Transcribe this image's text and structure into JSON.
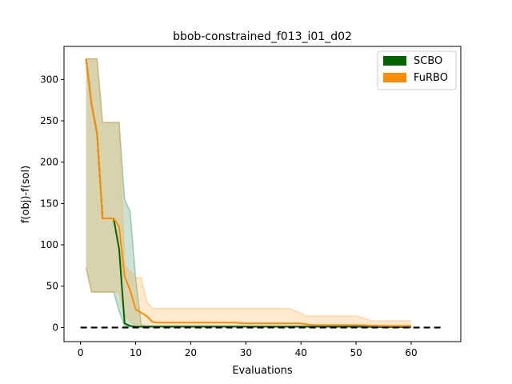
{
  "chart_data": {
    "type": "line",
    "title": "bbob-constrained_f013_i01_d02",
    "xlabel": "Evaluations",
    "ylabel": "f(obj)-f(sol)",
    "xlim": [
      -3,
      69
    ],
    "ylim": [
      -17,
      340
    ],
    "xticks": [
      0,
      10,
      20,
      30,
      40,
      50,
      60
    ],
    "yticks": [
      0,
      50,
      100,
      150,
      200,
      250,
      300
    ],
    "reference_line": {
      "y": 0,
      "x_range": [
        0,
        66
      ],
      "style": "dashed",
      "color": "#000000"
    },
    "legend": {
      "position": "top-right",
      "entries": [
        "SCBO",
        "FuRBO"
      ]
    },
    "series": [
      {
        "name": "SCBO",
        "color": "#006400",
        "band_color": "#2e8b57",
        "median": [
          [
            1,
            325
          ],
          [
            2,
            270
          ],
          [
            3,
            235
          ],
          [
            4,
            132
          ],
          [
            5,
            132
          ],
          [
            6,
            132
          ],
          [
            7,
            95
          ],
          [
            8,
            5
          ],
          [
            9,
            2
          ],
          [
            10,
            1
          ],
          [
            11,
            1
          ],
          [
            12,
            1
          ],
          [
            13,
            1
          ],
          [
            20,
            1
          ],
          [
            30,
            1
          ],
          [
            40,
            1
          ],
          [
            50,
            1
          ],
          [
            55,
            0.5
          ],
          [
            60,
            0.5
          ]
        ],
        "upper": [
          [
            1,
            325
          ],
          [
            2,
            325
          ],
          [
            3,
            325
          ],
          [
            4,
            248
          ],
          [
            5,
            248
          ],
          [
            6,
            248
          ],
          [
            7,
            248
          ],
          [
            8,
            155
          ],
          [
            9,
            140
          ],
          [
            10,
            60
          ],
          [
            11,
            3
          ],
          [
            12,
            2
          ],
          [
            13,
            2
          ],
          [
            20,
            2
          ],
          [
            30,
            2
          ],
          [
            40,
            2
          ],
          [
            50,
            2
          ],
          [
            54,
            2
          ],
          [
            55,
            1
          ],
          [
            60,
            1
          ]
        ],
        "lower": [
          [
            1,
            72
          ],
          [
            2,
            43
          ],
          [
            3,
            43
          ],
          [
            4,
            43
          ],
          [
            5,
            43
          ],
          [
            6,
            43
          ],
          [
            7,
            20
          ],
          [
            8,
            2
          ],
          [
            9,
            1
          ],
          [
            10,
            0.5
          ],
          [
            20,
            0.5
          ],
          [
            30,
            0.5
          ],
          [
            40,
            0.5
          ],
          [
            50,
            0.5
          ],
          [
            60,
            0.5
          ]
        ]
      },
      {
        "name": "FuRBO",
        "color": "#ff8c00",
        "band_color": "#ffa940",
        "median": [
          [
            1,
            325
          ],
          [
            2,
            270
          ],
          [
            3,
            235
          ],
          [
            4,
            132
          ],
          [
            5,
            132
          ],
          [
            6,
            132
          ],
          [
            7,
            122
          ],
          [
            8,
            62
          ],
          [
            9,
            45
          ],
          [
            10,
            22
          ],
          [
            11,
            18
          ],
          [
            12,
            14
          ],
          [
            13,
            7
          ],
          [
            14,
            6
          ],
          [
            20,
            6
          ],
          [
            28,
            6
          ],
          [
            30,
            5
          ],
          [
            40,
            5
          ],
          [
            42,
            3
          ],
          [
            50,
            3
          ],
          [
            55,
            2
          ],
          [
            60,
            2
          ]
        ],
        "upper": [
          [
            1,
            325
          ],
          [
            2,
            325
          ],
          [
            3,
            325
          ],
          [
            4,
            248
          ],
          [
            5,
            248
          ],
          [
            6,
            248
          ],
          [
            7,
            248
          ],
          [
            8,
            75
          ],
          [
            9,
            68
          ],
          [
            10,
            60
          ],
          [
            11,
            60
          ],
          [
            12,
            32
          ],
          [
            13,
            23
          ],
          [
            20,
            23
          ],
          [
            30,
            23
          ],
          [
            38,
            23
          ],
          [
            41,
            14
          ],
          [
            50,
            14
          ],
          [
            53,
            8
          ],
          [
            60,
            8
          ]
        ],
        "lower": [
          [
            1,
            72
          ],
          [
            2,
            43
          ],
          [
            3,
            43
          ],
          [
            4,
            43
          ],
          [
            5,
            43
          ],
          [
            6,
            43
          ],
          [
            7,
            43
          ],
          [
            8,
            15
          ],
          [
            9,
            8
          ],
          [
            10,
            3
          ],
          [
            11,
            1
          ],
          [
            20,
            1
          ],
          [
            30,
            1
          ],
          [
            40,
            1
          ],
          [
            50,
            1
          ],
          [
            60,
            1
          ]
        ]
      }
    ]
  }
}
